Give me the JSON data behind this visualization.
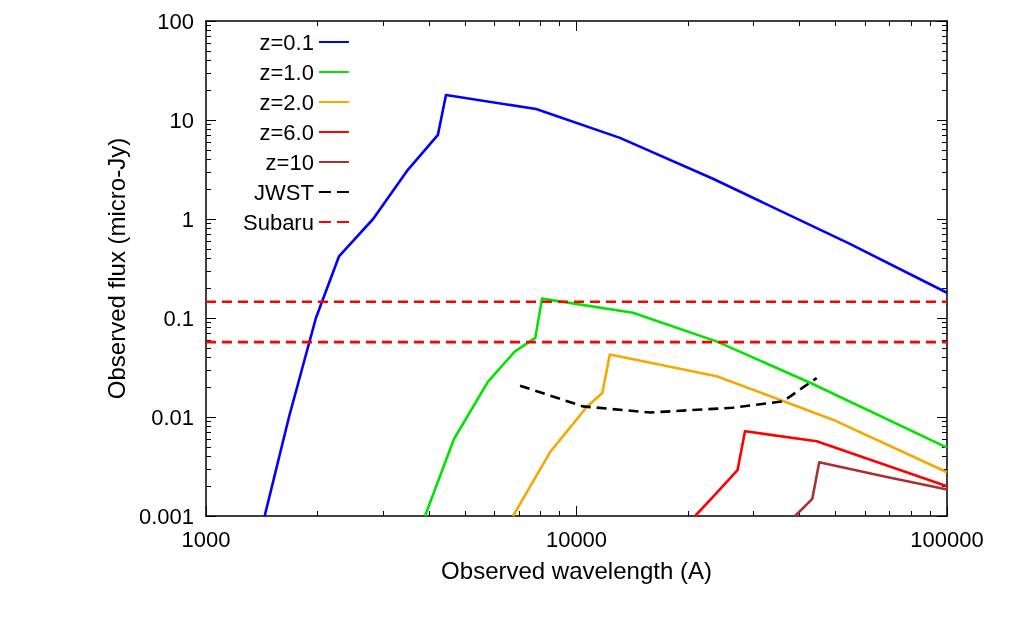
{
  "chart_data": {
    "type": "line",
    "xlabel": "Observed wavelength (A)",
    "ylabel": "Observed flux (micro-Jy)",
    "log": "xy",
    "xlim": [
      1000,
      100000
    ],
    "xticks": [
      1000,
      10000,
      100000
    ],
    "ylim": [
      0.001,
      100
    ],
    "yticks": [
      0.001,
      0.01,
      0.1,
      1,
      10,
      100
    ],
    "grid": false,
    "legend": "top left",
    "marker": "none",
    "series": [
      {
        "name": "z=0.1",
        "color": "#0000ff",
        "x": [
          1440,
          1675,
          1980,
          2286,
          2825,
          3487,
          4227,
          4443,
          7780,
          13100,
          23350,
          54700,
          100000
        ],
        "values": [
          0.001,
          0.01,
          0.1,
          0.42,
          1,
          3.06,
          7.08,
          17.9,
          12.9,
          6.6,
          2.55,
          0.56,
          0.18
        ]
      },
      {
        "name": "z=1.0",
        "color": "#00e400",
        "x": [
          3900,
          4670,
          5770,
          6820,
          7740,
          8070,
          14200,
          23950,
          42700,
          100000
        ],
        "values": [
          0.001,
          0.006,
          0.0228,
          0.046,
          0.063,
          0.157,
          0.113,
          0.0577,
          0.0222,
          0.0049
        ]
      },
      {
        "name": "z=2.0",
        "color": "#f5a800",
        "x": [
          6740,
          8480,
          10670,
          11740,
          12300,
          23900,
          49200,
          100000
        ],
        "values": [
          0.001,
          0.0044,
          0.0127,
          0.0175,
          0.0427,
          0.0258,
          0.0094,
          0.00277
        ]
      },
      {
        "name": "z=6.0",
        "color": "#ff0000",
        "x": [
          20900,
          23900,
          27200,
          28500,
          44500,
          100000
        ],
        "values": [
          0.001,
          0.00171,
          0.0029,
          0.00718,
          0.00569,
          0.002
        ]
      },
      {
        "name": "z=10",
        "color": "#a83232",
        "x": [
          38900,
          43300,
          45200,
          67300,
          100000
        ],
        "values": [
          0.001,
          0.00149,
          0.00349,
          0.00252,
          0.00185
        ]
      },
      {
        "name": "JWST",
        "color": "#000000",
        "line_style": "dashed",
        "x": [
          7040,
          10400,
          15800,
          26400,
          36100,
          44500
        ],
        "values": [
          0.0207,
          0.0128,
          0.0111,
          0.0124,
          0.0144,
          0.0248
        ]
      },
      {
        "name": "Subaru",
        "color": "#ff0000",
        "line_style": "dashed",
        "x": [
          1000,
          100000
        ],
        "values": [
          0.146,
          0.146
        ]
      },
      {
        "color": "#ff0000",
        "line_style": "dashed",
        "x": [
          1000,
          100000
        ],
        "values": [
          0.057,
          0.057
        ]
      }
    ]
  }
}
